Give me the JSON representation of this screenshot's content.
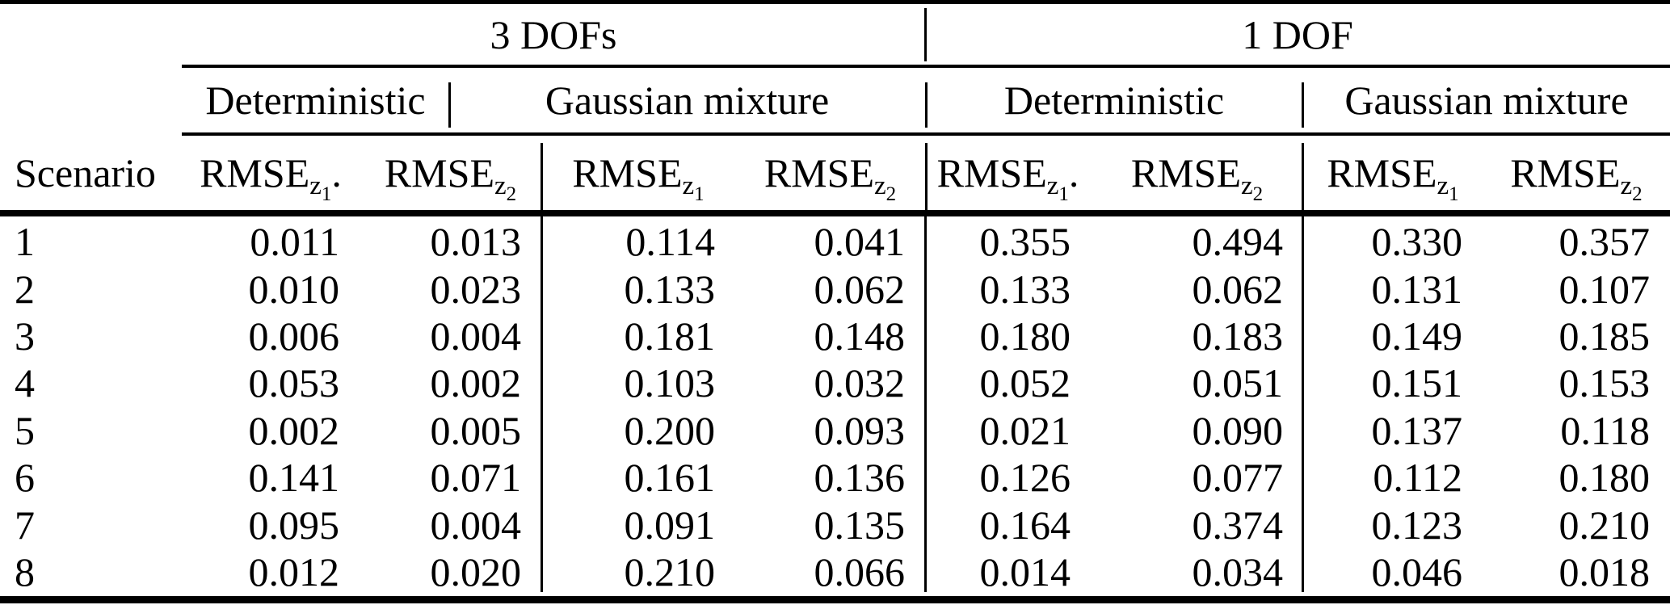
{
  "table": {
    "scenario_header": "Scenario",
    "group_headers": [
      {
        "label": "3 DOFs"
      },
      {
        "label": "1 DOF"
      }
    ],
    "method_headers": [
      {
        "label": "Deterministic"
      },
      {
        "label": "Gaussian mixture"
      },
      {
        "label": "Deterministic"
      },
      {
        "label": "Gaussian mixture"
      }
    ],
    "rmse_columns": [
      {
        "base": "RMSE",
        "sub": "z",
        "subsub": "1",
        "suffix": "."
      },
      {
        "base": "RMSE",
        "sub": "z",
        "subsub": "2",
        "suffix": ""
      },
      {
        "base": "RMSE",
        "sub": "z",
        "subsub": "1",
        "suffix": ""
      },
      {
        "base": "RMSE",
        "sub": "z",
        "subsub": "2",
        "suffix": ""
      },
      {
        "base": "RMSE",
        "sub": "z",
        "subsub": "1",
        "suffix": "."
      },
      {
        "base": "RMSE",
        "sub": "z",
        "subsub": "2",
        "suffix": ""
      },
      {
        "base": "RMSE",
        "sub": "z",
        "subsub": "1",
        "suffix": ""
      },
      {
        "base": "RMSE",
        "sub": "z",
        "subsub": "2",
        "suffix": ""
      }
    ],
    "rows": [
      {
        "scenario": "1",
        "values": [
          "0.011",
          "0.013",
          "0.114",
          "0.041",
          "0.355",
          "0.494",
          "0.330",
          "0.357"
        ]
      },
      {
        "scenario": "2",
        "values": [
          "0.010",
          "0.023",
          "0.133",
          "0.062",
          "0.133",
          "0.062",
          "0.131",
          "0.107"
        ]
      },
      {
        "scenario": "3",
        "values": [
          "0.006",
          "0.004",
          "0.181",
          "0.148",
          "0.180",
          "0.183",
          "0.149",
          "0.185"
        ]
      },
      {
        "scenario": "4",
        "values": [
          "0.053",
          "0.002",
          "0.103",
          "0.032",
          "0.052",
          "0.051",
          "0.151",
          "0.153"
        ]
      },
      {
        "scenario": "5",
        "values": [
          "0.002",
          "0.005",
          "0.200",
          "0.093",
          "0.021",
          "0.090",
          "0.137",
          "0.118"
        ]
      },
      {
        "scenario": "6",
        "values": [
          "0.141",
          "0.071",
          "0.161",
          "0.136",
          "0.126",
          "0.077",
          "0.112",
          "0.180"
        ]
      },
      {
        "scenario": "7",
        "values": [
          "0.095",
          "0.004",
          "0.091",
          "0.135",
          "0.164",
          "0.374",
          "0.123",
          "0.210"
        ]
      },
      {
        "scenario": "8",
        "values": [
          "0.012",
          "0.020",
          "0.210",
          "0.066",
          "0.014",
          "0.034",
          "0.046",
          "0.018"
        ]
      }
    ]
  },
  "colors": {
    "text": "#000000",
    "background": "#ffffff",
    "rule": "#000000"
  },
  "chart_data": {
    "type": "table",
    "title": "",
    "column_groups": [
      "3 DOFs / Deterministic",
      "3 DOFs / Gaussian mixture",
      "1 DOF / Deterministic",
      "1 DOF / Gaussian mixture"
    ],
    "columns": [
      "Scenario",
      "RMSE_z1 (3 DOFs, Deterministic)",
      "RMSE_z2 (3 DOFs, Deterministic)",
      "RMSE_z1 (3 DOFs, Gaussian mixture)",
      "RMSE_z2 (3 DOFs, Gaussian mixture)",
      "RMSE_z1 (1 DOF, Deterministic)",
      "RMSE_z2 (1 DOF, Deterministic)",
      "RMSE_z1 (1 DOF, Gaussian mixture)",
      "RMSE_z2 (1 DOF, Gaussian mixture)"
    ],
    "rows": [
      [
        1,
        0.011,
        0.013,
        0.114,
        0.041,
        0.355,
        0.494,
        0.33,
        0.357
      ],
      [
        2,
        0.01,
        0.023,
        0.133,
        0.062,
        0.133,
        0.062,
        0.131,
        0.107
      ],
      [
        3,
        0.006,
        0.004,
        0.181,
        0.148,
        0.18,
        0.183,
        0.149,
        0.185
      ],
      [
        4,
        0.053,
        0.002,
        0.103,
        0.032,
        0.052,
        0.051,
        0.151,
        0.153
      ],
      [
        5,
        0.002,
        0.005,
        0.2,
        0.093,
        0.021,
        0.09,
        0.137,
        0.118
      ],
      [
        6,
        0.141,
        0.071,
        0.161,
        0.136,
        0.126,
        0.077,
        0.112,
        0.18
      ],
      [
        7,
        0.095,
        0.004,
        0.091,
        0.135,
        0.164,
        0.374,
        0.123,
        0.21
      ],
      [
        8,
        0.012,
        0.02,
        0.21,
        0.066,
        0.014,
        0.034,
        0.046,
        0.018
      ]
    ]
  }
}
